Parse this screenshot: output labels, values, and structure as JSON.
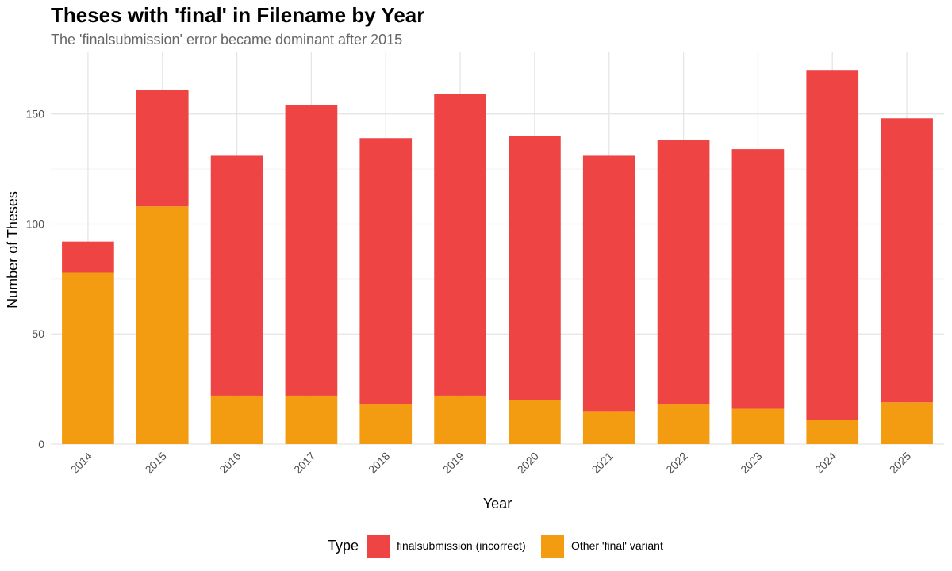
{
  "chart_data": {
    "type": "bar",
    "stacked": true,
    "title": "Theses with 'final' in Filename by Year",
    "subtitle": "The 'finalsubmission' error became dominant after 2015",
    "xlabel": "Year",
    "ylabel": "Number of Theses",
    "ylim": [
      0,
      178
    ],
    "yticks": [
      0,
      50,
      100,
      150
    ],
    "grid": true,
    "legend_title": "Type",
    "legend_position": "bottom",
    "categories": [
      "2014",
      "2015",
      "2016",
      "2017",
      "2018",
      "2019",
      "2020",
      "2021",
      "2022",
      "2023",
      "2024",
      "2025"
    ],
    "series": [
      {
        "name": "Other 'final' variant",
        "color": "#F39C12",
        "values": [
          78,
          108,
          22,
          22,
          18,
          22,
          20,
          15,
          18,
          16,
          11,
          19
        ]
      },
      {
        "name": "finalsubmission (incorrect)",
        "color": "#EF4444",
        "values": [
          14,
          53,
          109,
          132,
          121,
          137,
          120,
          116,
          120,
          118,
          159,
          129
        ]
      }
    ],
    "legend_order": [
      1,
      0
    ]
  }
}
